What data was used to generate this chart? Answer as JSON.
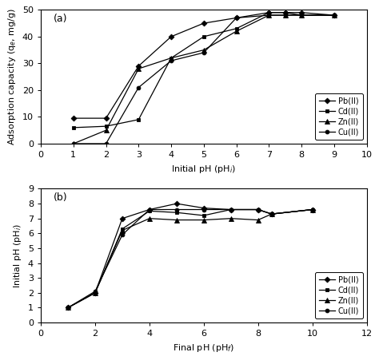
{
  "panel_a": {
    "title": "(a)",
    "xlabel": "Initial pH (pH$_i$)",
    "ylabel": "Adsorption capacity (q$_e$, mg/g)",
    "xlim": [
      0,
      10
    ],
    "ylim": [
      0,
      50
    ],
    "xticks": [
      0,
      1,
      2,
      3,
      4,
      5,
      6,
      7,
      8,
      9,
      10
    ],
    "yticks": [
      0,
      10,
      20,
      30,
      40,
      50
    ],
    "series": {
      "Pb(II)": {
        "x": [
          1,
          2,
          3,
          4,
          5,
          6,
          7,
          7.5,
          8,
          9
        ],
        "y": [
          9.5,
          9.5,
          29,
          40,
          45,
          47,
          49,
          49,
          49,
          48
        ]
      },
      "Cd(II)": {
        "x": [
          1,
          2,
          3,
          4,
          5,
          6,
          7,
          7.5,
          8,
          9
        ],
        "y": [
          6,
          6.5,
          9,
          32,
          40,
          43,
          49,
          49,
          48,
          48
        ]
      },
      "Zn(II)": {
        "x": [
          1,
          2,
          3,
          4,
          5,
          6,
          7,
          7.5,
          8,
          9
        ],
        "y": [
          0,
          5,
          28,
          32,
          35,
          42,
          48,
          48,
          48,
          48
        ]
      },
      "Cu(II)": {
        "x": [
          1,
          2,
          3,
          4,
          5,
          6,
          7,
          7.5,
          8,
          9
        ],
        "y": [
          0,
          0,
          21,
          31,
          34,
          47,
          48,
          48,
          48,
          48
        ]
      }
    },
    "legend_order": [
      "Pb(II)",
      "Cd(II)",
      "Zn(II)",
      "Cu(II)"
    ]
  },
  "panel_b": {
    "title": "(b)",
    "xlabel": "Final pH (pH$_f$)",
    "ylabel": "Initial pH (pH$_i$)",
    "xlim": [
      0,
      12
    ],
    "ylim": [
      0,
      9
    ],
    "xticks": [
      0,
      2,
      4,
      6,
      8,
      10,
      12
    ],
    "yticks": [
      0,
      1,
      2,
      3,
      4,
      5,
      6,
      7,
      8,
      9
    ],
    "series": {
      "Pb(II)": {
        "x": [
          1,
          2,
          3,
          4,
          5,
          6,
          7,
          8,
          8.5,
          10
        ],
        "y": [
          1,
          2,
          7,
          7.6,
          8.0,
          7.7,
          7.6,
          7.6,
          7.3,
          7.6
        ]
      },
      "Cd(II)": {
        "x": [
          1,
          2,
          3,
          4,
          5,
          6,
          7,
          8,
          8.5,
          10
        ],
        "y": [
          1,
          2,
          6.3,
          7.5,
          7.4,
          7.2,
          7.6,
          7.6,
          7.3,
          7.6
        ]
      },
      "Zn(II)": {
        "x": [
          1,
          2,
          3,
          4,
          5,
          6,
          7,
          8,
          8.5,
          10
        ],
        "y": [
          1,
          2,
          6.2,
          7.0,
          6.9,
          6.9,
          7.0,
          6.9,
          7.3,
          7.6
        ]
      },
      "Cu(II)": {
        "x": [
          1,
          2,
          3,
          4,
          5,
          6,
          7,
          8,
          8.5,
          10
        ],
        "y": [
          1,
          2.1,
          5.9,
          7.6,
          7.6,
          7.6,
          7.6,
          7.6,
          7.3,
          7.6
        ]
      }
    },
    "legend_order": [
      "Pb(II)",
      "Cd(II)",
      "Zn(II)",
      "Cu(II)"
    ]
  },
  "line_color": "#000000",
  "legend_fontsize": 7,
  "tick_fontsize": 8,
  "label_fontsize": 8,
  "title_fontsize": 9,
  "figsize": [
    4.74,
    4.51
  ],
  "dpi": 100
}
